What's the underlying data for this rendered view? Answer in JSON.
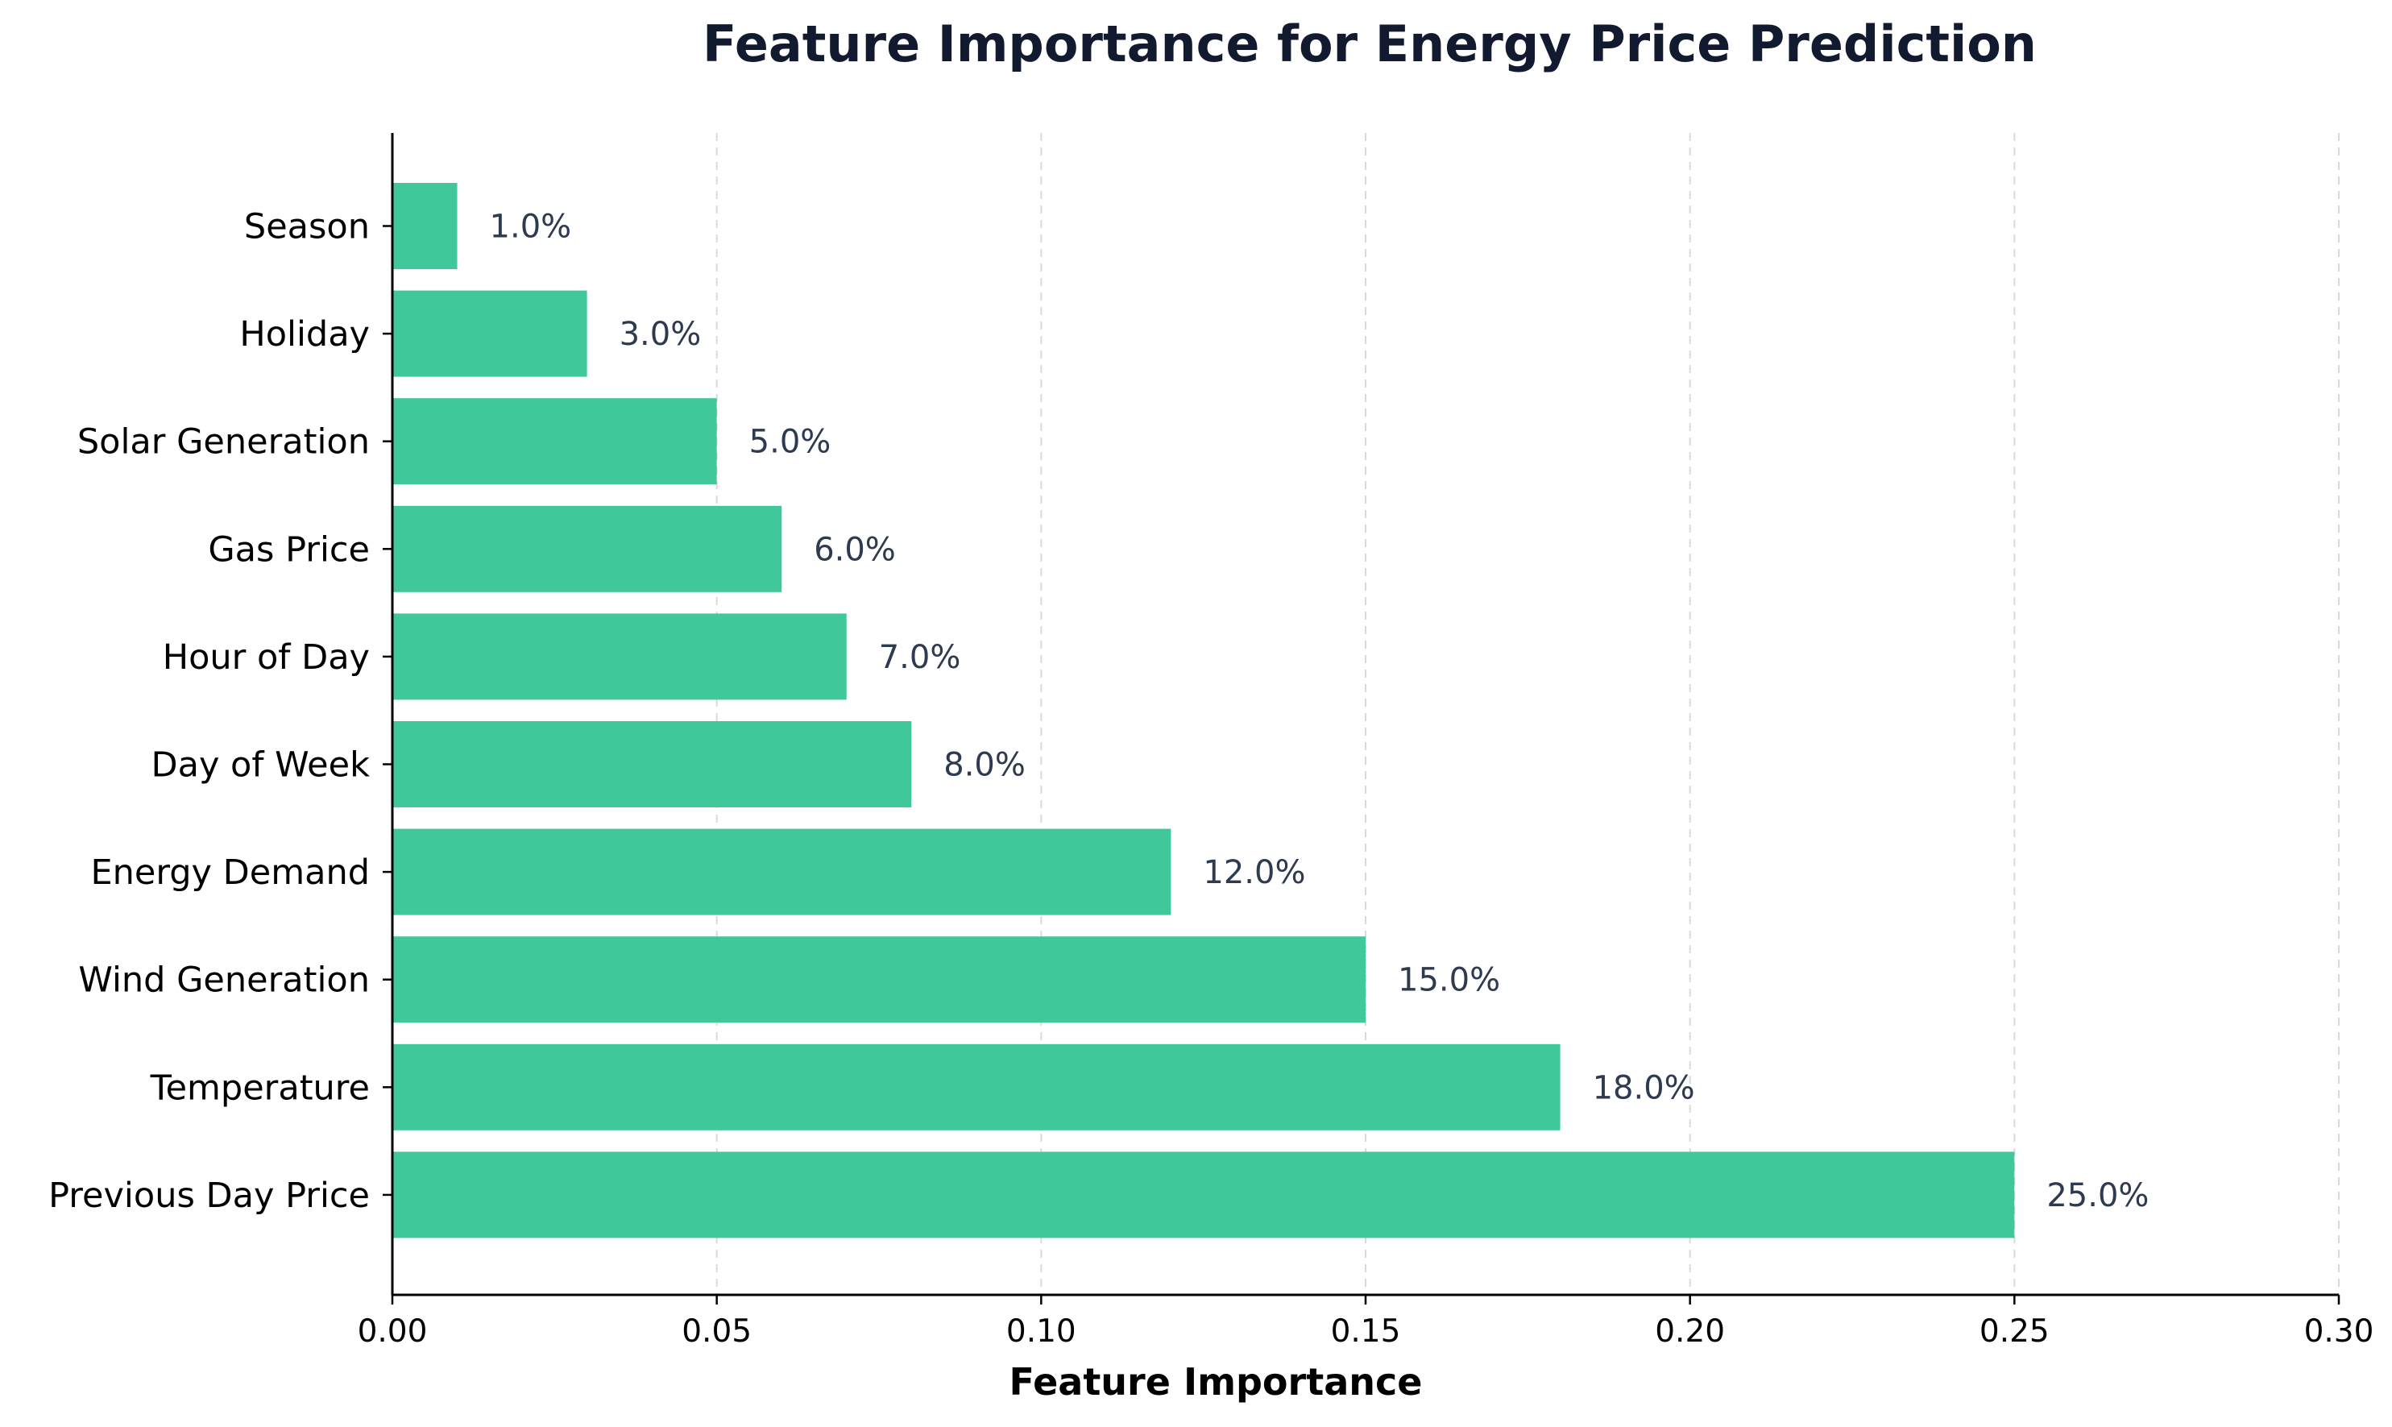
{
  "chart_data": {
    "type": "bar",
    "orientation": "horizontal",
    "title": "Feature Importance for Energy Price Prediction",
    "xlabel": "Feature Importance",
    "ylabel": "",
    "xlim": [
      0,
      0.3
    ],
    "x_ticks": [
      0.0,
      0.05,
      0.1,
      0.15,
      0.2,
      0.25,
      0.3
    ],
    "x_tick_labels": [
      "0.00",
      "0.05",
      "0.10",
      "0.15",
      "0.20",
      "0.25",
      "0.30"
    ],
    "grid": "vertical dashed",
    "bar_color": "#41c89a",
    "label_color": "#2e3a4f",
    "title_color": "#111a2e",
    "categories": [
      "Previous Day Price",
      "Temperature",
      "Wind Generation",
      "Energy Demand",
      "Day of Week",
      "Hour of Day",
      "Gas Price",
      "Solar Generation",
      "Holiday",
      "Season"
    ],
    "values": [
      0.25,
      0.18,
      0.15,
      0.12,
      0.08,
      0.07,
      0.06,
      0.05,
      0.03,
      0.01
    ],
    "data_labels": [
      "25.0%",
      "18.0%",
      "15.0%",
      "12.0%",
      "8.0%",
      "7.0%",
      "6.0%",
      "5.0%",
      "3.0%",
      "1.0%"
    ]
  }
}
